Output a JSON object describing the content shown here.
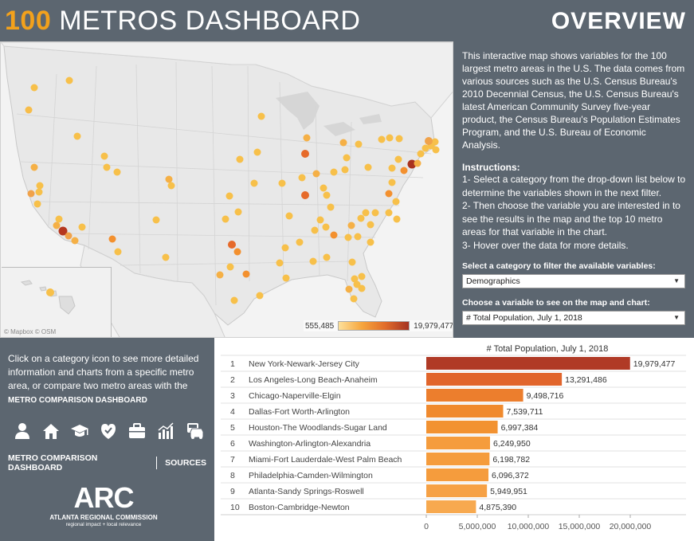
{
  "header": {
    "brand_number": "100",
    "brand_text": "METROS DASHBOARD",
    "page_title": "OVERVIEW"
  },
  "colors": {
    "header_bg": "#5c6670",
    "accent_orange": "#f2a11c",
    "bar_top": "#b03a26",
    "bar_second": "#e1652b",
    "bar_mid": "#f08a2e",
    "bar_low": "#f7a448"
  },
  "map": {
    "attribution": "© Mapbox  © OSM",
    "legend_min": "555,485",
    "legend_max": "19,979,477"
  },
  "side": {
    "description": "This interactive map shows variables for the 100 largest metro areas in the U.S. The data comes from various sources such as the U.S. Census Bureau's 2010 Decennial Census, the U.S. Census Bureau's latest American Community Survey five-year product, the Census Bureau's Population Estimates Program, and the U.S. Bureau of Economic Analysis.",
    "instructions_title": "Instructions:",
    "step1": "1- Select a category from the drop-down list below to determine the variables shown in the next filter.",
    "step2": "2- Then choose the variable you are interested in to see the results in the map and the top 10 metro areas for that variable in the chart.",
    "step3": "3- Hover over the data for more details.",
    "category_label": "Select a category to filter the available variables:",
    "category_value": "Demographics",
    "variable_label": "Choose a variable to see on the map and chart:",
    "variable_value": "# Total Population, July 1, 2018"
  },
  "bottom_left": {
    "text_before": "Click on a category icon to see more detailed information and charts from a specific metro area, or compare two metro areas with the ",
    "text_link": "METRO COMPARISON DASHBOARD",
    "icons": [
      "person-icon",
      "house-icon",
      "graduation-cap-icon",
      "heart-shield-icon",
      "briefcase-icon",
      "bar-chart-icon",
      "car-transit-icon"
    ],
    "link_compare": "METRO COMPARISON DASHBOARD",
    "link_sources": "SOURCES",
    "logo_text": "ARC",
    "logo_name": "ATLANTA REGIONAL COMMISSION",
    "logo_tagline": "regional impact + local relevance"
  },
  "chart_data": {
    "type": "bar",
    "orientation": "horizontal",
    "title": "# Total Population, July 1, 2018",
    "ranks": [
      "1",
      "2",
      "3",
      "4",
      "5",
      "6",
      "7",
      "8",
      "9",
      "10"
    ],
    "categories": [
      "New York-Newark-Jersey City",
      "Los Angeles-Long Beach-Anaheim",
      "Chicago-Naperville-Elgin",
      "Dallas-Fort Worth-Arlington",
      "Houston-The Woodlands-Sugar Land",
      "Washington-Arlington-Alexandria",
      "Miami-Fort Lauderdale-West Palm Beach",
      "Philadelphia-Camden-Wilmington",
      "Atlanta-Sandy Springs-Roswell",
      "Boston-Cambridge-Newton"
    ],
    "values": [
      19979477,
      13291486,
      9498716,
      7539711,
      6997384,
      6249950,
      6198782,
      6096372,
      5949951,
      4875390
    ],
    "value_labels": [
      "19,979,477",
      "13,291,486",
      "9,498,716",
      "7,539,711",
      "6,997,384",
      "6,249,950",
      "6,198,782",
      "6,096,372",
      "5,949,951",
      "4,875,390"
    ],
    "bar_colors": [
      "#b03a26",
      "#e1652b",
      "#ec7e2d",
      "#f08a2e",
      "#f29231",
      "#f59c3d",
      "#f59c3d",
      "#f59c3d",
      "#f6a145",
      "#f7a94f"
    ],
    "xlim": [
      0,
      25000000
    ],
    "x_ticks": [
      0,
      5000000,
      10000000,
      15000000,
      20000000
    ],
    "x_tick_labels": [
      "0",
      "5,000,000",
      "10,000,000",
      "15,000,000",
      "20,000,000"
    ]
  }
}
